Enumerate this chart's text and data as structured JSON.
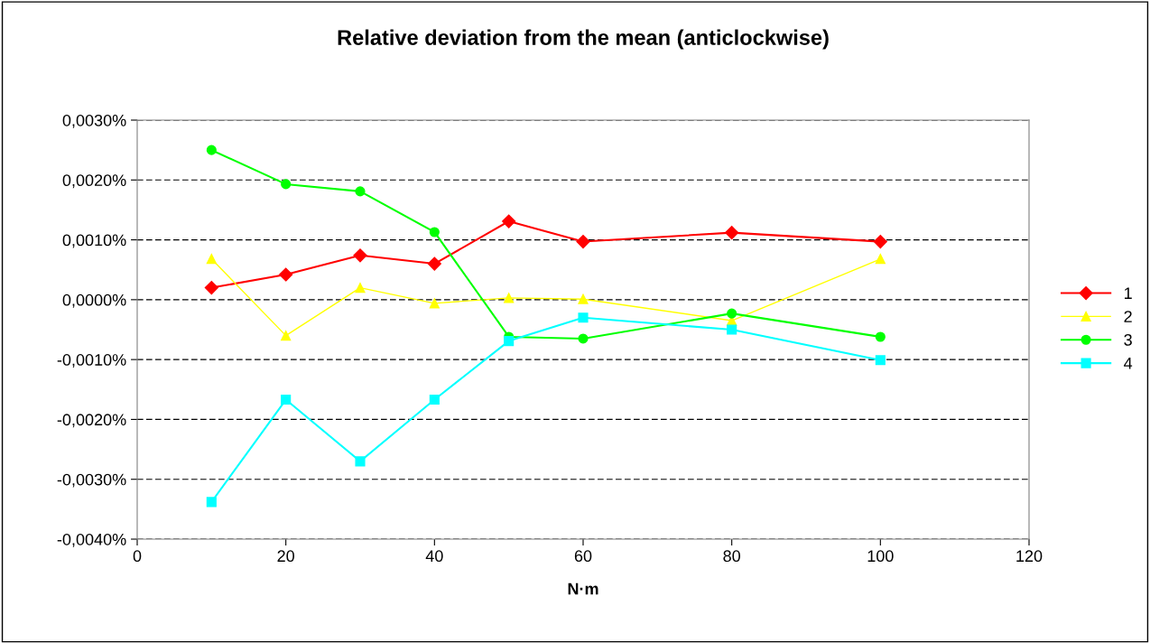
{
  "chart_data": {
    "type": "line",
    "title": "Relative deviation from the mean (anticlockwise)",
    "xlabel": "N·m",
    "x": [
      10,
      20,
      30,
      40,
      50,
      60,
      80,
      100
    ],
    "series": [
      {
        "name": "1",
        "color": "#ff0000",
        "marker": "diamond",
        "values": [
          0.0002,
          0.00042,
          0.00074,
          0.0006,
          0.00131,
          0.00097,
          0.00112,
          0.00097
        ]
      },
      {
        "name": "2",
        "color": "#ffff00",
        "marker": "triangle",
        "values": [
          0.00068,
          -0.0006,
          0.0002,
          -6e-05,
          3e-05,
          1e-05,
          -0.00035,
          0.00068
        ]
      },
      {
        "name": "3",
        "color": "#00ff00",
        "marker": "circle",
        "values": [
          0.0025,
          0.00193,
          0.00181,
          0.00113,
          -0.00062,
          -0.00065,
          -0.00023,
          -0.00062
        ]
      },
      {
        "name": "4",
        "color": "#00ffff",
        "marker": "square",
        "values": [
          -0.00338,
          -0.00167,
          -0.0027,
          -0.00167,
          -0.00069,
          -0.0003,
          -0.0005,
          -0.00101
        ]
      }
    ],
    "xlim": [
      0,
      120
    ],
    "xticks": [
      0,
      20,
      40,
      60,
      80,
      100,
      120
    ],
    "ylim": [
      -0.004,
      0.003
    ],
    "yticks": [
      {
        "value": -0.004,
        "label": "-0,0040%"
      },
      {
        "value": -0.003,
        "label": "-0,0030%"
      },
      {
        "value": -0.002,
        "label": "-0,0020%"
      },
      {
        "value": -0.001,
        "label": "-0,0010%"
      },
      {
        "value": 0,
        "label": "0,0000%"
      },
      {
        "value": 0.001,
        "label": "0,0010%"
      },
      {
        "value": 0.002,
        "label": "0,0020%"
      },
      {
        "value": 0.003,
        "label": "0,0030%"
      }
    ],
    "grid": "y",
    "legend": "right",
    "line_style": "solid"
  }
}
